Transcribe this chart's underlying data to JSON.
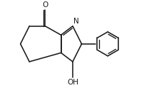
{
  "bg_color": "#ffffff",
  "line_color": "#1a1a1a",
  "line_width": 1.15,
  "figsize": [
    2.02,
    1.31
  ],
  "dpi": 100,
  "xlim": [
    0,
    10
  ],
  "ylim": [
    0,
    6.5
  ]
}
